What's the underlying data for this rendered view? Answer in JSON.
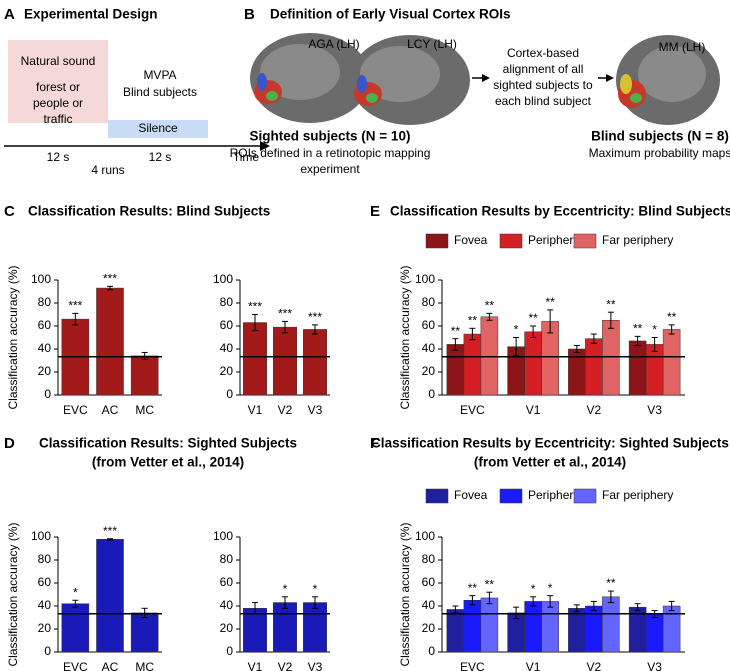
{
  "panel_a": {
    "letter": "A",
    "title": "Experimental Design",
    "sound_box": [
      "Natural sound",
      "forest or",
      "people or",
      "traffic"
    ],
    "mvpa": [
      "MVPA",
      "Blind subjects"
    ],
    "silence": "Silence",
    "timeline": [
      "12 s",
      "4 runs",
      "12 s",
      "Time"
    ]
  },
  "panel_b": {
    "letter": "B",
    "title": "Definition of Early Visual Cortex ROIs",
    "brain_labels": [
      "AGA (LH)",
      "LCY (LH)",
      "MM (LH)"
    ],
    "alignment": [
      "Cortex-based",
      "alignment of all",
      "sighted subjects to",
      "each blind subject"
    ],
    "sighted_title": "Sighted subjects (N = 10)",
    "sighted_text": [
      "ROIs defined in a retinotopic mapping",
      "experiment"
    ],
    "blind_title": "Blind subjects (N = 8)",
    "blind_text": "Maximum probability maps"
  },
  "chart_data": [
    {
      "type": "bar",
      "panel": "C",
      "title": "Classification Results: Blind Subjects",
      "ylabel": "Classification accuracy (%)",
      "categories": [
        "EVC",
        "AC",
        "MC"
      ],
      "values": [
        66,
        93,
        34
      ],
      "errors": [
        5,
        1.5,
        3
      ],
      "significance": [
        "***",
        "***",
        null
      ],
      "color": "#a31a1a",
      "chance": 33.3,
      "ylim": [
        0,
        100
      ],
      "yticks": [
        0,
        20,
        40,
        60,
        80,
        100
      ]
    },
    {
      "type": "bar",
      "categories": [
        "V1",
        "V2",
        "V3"
      ],
      "values": [
        63,
        59,
        57
      ],
      "errors": [
        7,
        5,
        4
      ],
      "significance": [
        "***",
        "***",
        "***"
      ],
      "color": "#a31a1a",
      "chance": 33.3,
      "ylim": [
        0,
        100
      ],
      "yticks": [
        0,
        20,
        40,
        60,
        80,
        100
      ]
    },
    {
      "type": "bar",
      "panel": "D",
      "title": "Classification Results: Sighted Subjects",
      "subtitle": "(from Vetter et al., 2014)",
      "ylabel": "Classification accuracy (%)",
      "categories": [
        "EVC",
        "AC",
        "MC"
      ],
      "values": [
        42,
        98,
        34
      ],
      "errors": [
        3,
        0.5,
        4
      ],
      "significance": [
        "*",
        "***",
        null
      ],
      "color": "#1a1ab8",
      "chance": 33.3,
      "ylim": [
        0,
        100
      ],
      "yticks": [
        0,
        20,
        40,
        60,
        80,
        100
      ]
    },
    {
      "type": "bar",
      "categories": [
        "V1",
        "V2",
        "V3"
      ],
      "values": [
        38,
        43,
        43
      ],
      "errors": [
        5,
        5,
        5
      ],
      "significance": [
        null,
        "*",
        "*"
      ],
      "color": "#1a1ab8",
      "chance": 33.3,
      "ylim": [
        0,
        100
      ],
      "yticks": [
        0,
        20,
        40,
        60,
        80,
        100
      ]
    },
    {
      "type": "grouped_bar",
      "panel": "E",
      "title": "Classification Results by Eccentricity: Blind Subjects",
      "ylabel": "Classification accuracy (%)",
      "categories": [
        "EVC",
        "V1",
        "V2",
        "V3"
      ],
      "legend": "top",
      "series": [
        {
          "name": "Fovea",
          "color": "#8b1518",
          "values": [
            44,
            42,
            40,
            47
          ],
          "errors": [
            5,
            8,
            3,
            4
          ],
          "significance": [
            "**",
            "*",
            null,
            "**"
          ]
        },
        {
          "name": "Periphery",
          "color": "#d42024",
          "values": [
            53,
            55,
            49,
            44
          ],
          "errors": [
            5,
            5,
            4,
            6
          ],
          "significance": [
            "**",
            "**",
            null,
            "*"
          ]
        },
        {
          "name": "Far periphery",
          "color": "#e06464",
          "values": [
            68,
            64,
            65,
            57
          ],
          "errors": [
            3,
            10,
            7,
            4
          ],
          "significance": [
            "**",
            "**",
            "**",
            "**"
          ]
        }
      ],
      "chance": 33.3,
      "ylim": [
        0,
        100
      ],
      "yticks": [
        0,
        20,
        40,
        60,
        80,
        100
      ]
    },
    {
      "type": "grouped_bar",
      "panel": "F",
      "title": "Classification Results by Eccentricity: Sighted Subjects",
      "subtitle": "(from Vetter et al., 2014)",
      "ylabel": "Classification accuracy (%)",
      "categories": [
        "EVC",
        "V1",
        "V2",
        "V3"
      ],
      "legend": "top",
      "series": [
        {
          "name": "Fovea",
          "color": "#1f1fa0",
          "values": [
            37,
            34,
            38,
            39
          ],
          "errors": [
            3,
            5,
            3,
            3
          ],
          "significance": [
            null,
            null,
            null,
            null
          ]
        },
        {
          "name": "Periphery",
          "color": "#1a1aff",
          "values": [
            45,
            44,
            40,
            33
          ],
          "errors": [
            4,
            4,
            4,
            3
          ],
          "significance": [
            "**",
            "*",
            null,
            null
          ]
        },
        {
          "name": "Far periphery",
          "color": "#6464ff",
          "values": [
            47,
            44,
            48,
            40
          ],
          "errors": [
            5,
            5,
            5,
            4
          ],
          "significance": [
            "**",
            "*",
            "**",
            null
          ]
        }
      ],
      "chance": 33.3,
      "ylim": [
        0,
        100
      ],
      "yticks": [
        0,
        20,
        40,
        60,
        80,
        100
      ]
    }
  ]
}
